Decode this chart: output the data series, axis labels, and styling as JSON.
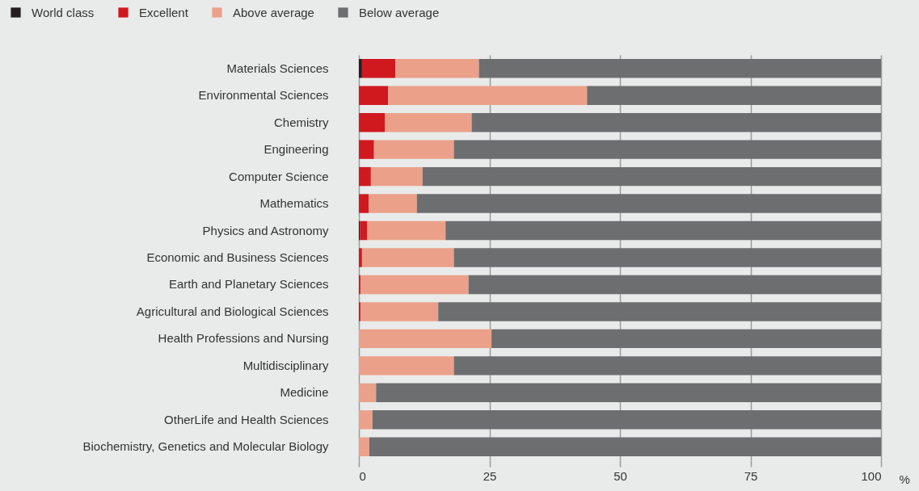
{
  "chart_data": {
    "type": "bar",
    "orientation": "horizontal",
    "stacked": true,
    "xlabel": "%",
    "categories": [
      "Materials Sciences",
      "Environmental Sciences",
      "Chemistry",
      "Engineering",
      "Computer Science",
      "Mathematics",
      "Physics and Astronomy",
      "Economic and Business Sciences",
      "Earth and Planetary Sciences",
      "Agricultural and Biological Sciences",
      "Health Professions and Nursing",
      "Multidisciplinary",
      "Medicine",
      "OtherLife and Health Sciences",
      "Biochemistry, Genetics and Molecular Biology"
    ],
    "series": [
      {
        "name": "World class",
        "color": "#231f20",
        "values": [
          0.6,
          0,
          0,
          0,
          0,
          0,
          0.2,
          0,
          0,
          0,
          0,
          0,
          0,
          0,
          0
        ]
      },
      {
        "name": "Excellent",
        "color": "#d0191f",
        "values": [
          6.4,
          5.6,
          5.0,
          2.9,
          2.3,
          1.9,
          1.4,
          0.6,
          0.3,
          0.3,
          0,
          0,
          0,
          0,
          0
        ]
      },
      {
        "name": "Above average",
        "color": "#eba189",
        "values": [
          16.0,
          38.1,
          16.6,
          15.3,
          9.9,
          9.2,
          15.0,
          17.6,
          20.7,
          14.9,
          25.4,
          18.2,
          3.3,
          2.6,
          2.0
        ]
      },
      {
        "name": "Below average",
        "color": "#6d6e70",
        "values": [
          77.0,
          56.3,
          78.4,
          81.8,
          87.8,
          88.9,
          83.4,
          81.8,
          79.0,
          84.8,
          74.6,
          81.8,
          96.7,
          97.4,
          98.0
        ]
      }
    ],
    "xlim": [
      0,
      100
    ],
    "xticks": [
      0,
      25,
      50,
      75,
      100
    ],
    "grid": "x",
    "legend": "top left"
  }
}
